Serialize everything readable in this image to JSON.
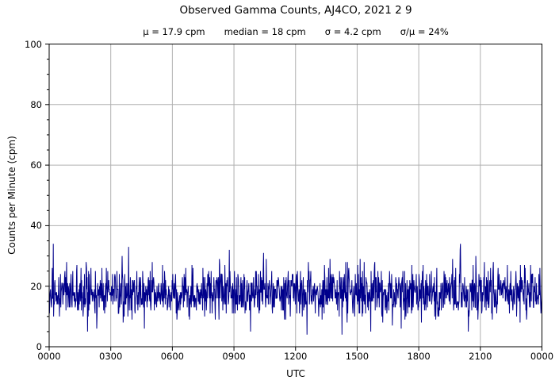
{
  "chart_data": {
    "type": "line",
    "title": "Observed Gamma Counts, AJ4CO, 2021 2 9",
    "stats_display": {
      "mu": "μ = 17.9 cpm",
      "median": "median = 18 cpm",
      "sigma": "σ = 4.2 cpm",
      "sigma_over_mu": "σ/μ = 24%"
    },
    "xlabel": "UTC",
    "ylabel": "Counts per Minute (cpm)",
    "x_ticks": [
      "0000",
      "0300",
      "0600",
      "0900",
      "1200",
      "1500",
      "1800",
      "2100",
      "0000"
    ],
    "y_ticks": [
      0,
      20,
      40,
      60,
      80,
      100
    ],
    "ylim": [
      0,
      100
    ],
    "x_span_minutes": 1440,
    "y_minor_step": 5,
    "grid": true,
    "grid_color": "#b0b0b0",
    "line_color": "#00008B",
    "axis_color": "#000000",
    "series": {
      "name": "observed-gamma-counts",
      "n_points": 1440,
      "distribution": "poisson",
      "mean_cpm": 17.9,
      "median_cpm": 18,
      "sigma_cpm": 4.2,
      "sigma_over_mu_pct": 24,
      "observed_min_cpm": 4,
      "observed_max_cpm": 33,
      "seed": 20210209,
      "anomalies": [
        {
          "minute": 232,
          "utc": "0352",
          "value_cpm": 33
        },
        {
          "minute": 753,
          "utc": "1233",
          "value_cpm": 4
        },
        {
          "minute": 855,
          "utc": "1415",
          "value_cpm": 4
        },
        {
          "minute": 1224,
          "utc": "2024",
          "value_cpm": 5
        }
      ]
    }
  }
}
